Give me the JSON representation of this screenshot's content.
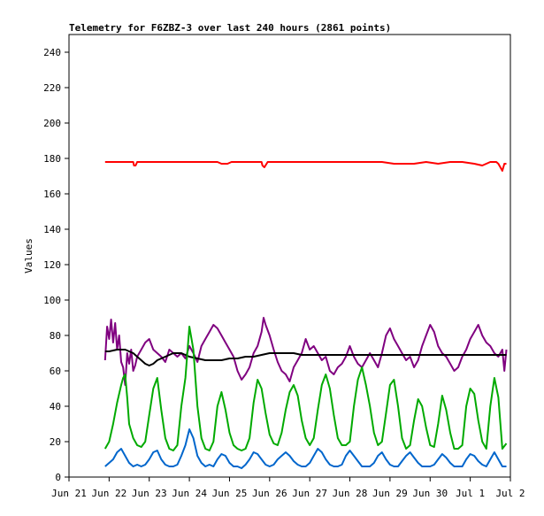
{
  "chart_data": {
    "type": "line",
    "title": "Telemetry for F6ZBZ-3 over last 240 hours (2861 points)",
    "xlabel": "",
    "ylabel": "Values",
    "ylim": [
      0,
      250
    ],
    "y_ticks": [
      0,
      20,
      40,
      60,
      80,
      100,
      120,
      140,
      160,
      180,
      200,
      220,
      240
    ],
    "xlim": [
      0,
      11
    ],
    "x_ticks": [
      0,
      1,
      2,
      3,
      4,
      5,
      6,
      7,
      8,
      9,
      10,
      11
    ],
    "x_tick_labels": [
      "Jun 21",
      "Jun 22",
      "Jun 23",
      "Jun 24",
      "Jun 25",
      "Jun 26",
      "Jun 27",
      "Jun 28",
      "Jun 29",
      "Jun 30",
      "Jul 1",
      "Jul 2"
    ],
    "x_unit": "days since Jun 21",
    "grid": false,
    "legend": false,
    "series": [
      {
        "color": "#ff0000",
        "x": [
          0.9,
          1.0,
          1.2,
          1.4,
          1.6,
          1.62,
          1.66,
          1.7,
          1.9,
          2.2,
          2.5,
          2.8,
          3.1,
          3.4,
          3.7,
          3.8,
          3.95,
          4.05,
          4.2,
          4.5,
          4.8,
          4.82,
          4.87,
          4.95,
          5.1,
          5.4,
          5.7,
          6.0,
          6.3,
          6.6,
          6.9,
          7.2,
          7.5,
          7.8,
          8.1,
          8.4,
          8.6,
          8.9,
          9.2,
          9.5,
          9.8,
          10.1,
          10.3,
          10.5,
          10.65,
          10.7,
          10.75,
          10.8,
          10.85,
          10.9
        ],
        "values": [
          178,
          178,
          178,
          178,
          178,
          176,
          176,
          178,
          178,
          178,
          178,
          178,
          178,
          178,
          178,
          177,
          177,
          178,
          178,
          178,
          178,
          176,
          175,
          178,
          178,
          178,
          178,
          178,
          178,
          178,
          178,
          178,
          178,
          178,
          177,
          177,
          177,
          178,
          177,
          178,
          178,
          177,
          176,
          178,
          178,
          177,
          175,
          173,
          177,
          177
        ]
      },
      {
        "color": "#800080",
        "x": [
          0.9,
          0.95,
          1.0,
          1.05,
          1.1,
          1.15,
          1.2,
          1.25,
          1.3,
          1.35,
          1.4,
          1.45,
          1.5,
          1.55,
          1.6,
          1.65,
          1.7,
          1.8,
          1.9,
          2.0,
          2.1,
          2.2,
          2.3,
          2.4,
          2.5,
          2.6,
          2.7,
          2.8,
          2.9,
          3.0,
          3.1,
          3.2,
          3.3,
          3.4,
          3.5,
          3.6,
          3.7,
          3.8,
          3.9,
          4.0,
          4.1,
          4.2,
          4.3,
          4.4,
          4.5,
          4.6,
          4.7,
          4.8,
          4.85,
          4.9,
          5.0,
          5.1,
          5.2,
          5.3,
          5.4,
          5.5,
          5.6,
          5.7,
          5.8,
          5.9,
          6.0,
          6.1,
          6.2,
          6.3,
          6.4,
          6.5,
          6.6,
          6.7,
          6.8,
          6.9,
          7.0,
          7.1,
          7.2,
          7.3,
          7.4,
          7.5,
          7.6,
          7.7,
          7.8,
          7.9,
          8.0,
          8.1,
          8.2,
          8.3,
          8.4,
          8.5,
          8.6,
          8.7,
          8.8,
          8.9,
          9.0,
          9.1,
          9.2,
          9.3,
          9.4,
          9.5,
          9.6,
          9.7,
          9.8,
          9.9,
          10.0,
          10.1,
          10.2,
          10.3,
          10.4,
          10.5,
          10.6,
          10.7,
          10.8,
          10.85,
          10.9
        ],
        "values": [
          66,
          85,
          78,
          89,
          76,
          87,
          72,
          80,
          65,
          62,
          52,
          70,
          64,
          72,
          60,
          63,
          68,
          72,
          76,
          78,
          72,
          70,
          68,
          65,
          72,
          70,
          68,
          70,
          67,
          74,
          70,
          65,
          74,
          78,
          82,
          86,
          84,
          80,
          76,
          72,
          68,
          60,
          55,
          58,
          62,
          70,
          74,
          82,
          90,
          86,
          80,
          72,
          65,
          60,
          58,
          54,
          62,
          66,
          70,
          78,
          72,
          74,
          70,
          66,
          68,
          60,
          58,
          62,
          64,
          68,
          74,
          68,
          64,
          62,
          66,
          70,
          66,
          62,
          70,
          80,
          84,
          78,
          74,
          70,
          66,
          68,
          62,
          66,
          74,
          80,
          86,
          82,
          74,
          70,
          68,
          64,
          60,
          62,
          68,
          72,
          78,
          82,
          86,
          80,
          76,
          74,
          70,
          68,
          72,
          60,
          72
        ]
      },
      {
        "color": "#000000",
        "x": [
          0.9,
          1.0,
          1.2,
          1.4,
          1.5,
          1.6,
          1.7,
          1.8,
          1.9,
          2.0,
          2.1,
          2.2,
          2.4,
          2.6,
          2.8,
          3.0,
          3.2,
          3.4,
          3.6,
          3.8,
          4.0,
          4.2,
          4.4,
          4.6,
          4.8,
          5.0,
          5.2,
          5.4,
          5.6,
          5.8,
          6.0,
          6.2,
          6.4,
          6.6,
          6.8,
          7.0,
          7.4,
          7.8,
          8.2,
          8.6,
          9.0,
          9.4,
          9.8,
          10.2,
          10.5,
          10.7,
          10.9
        ],
        "values": [
          71,
          71,
          72,
          72,
          71,
          70,
          68,
          66,
          64,
          63,
          64,
          66,
          68,
          70,
          70,
          68,
          67,
          66,
          66,
          66,
          67,
          67,
          68,
          68,
          69,
          70,
          70,
          70,
          70,
          69,
          69,
          69,
          69,
          69,
          69,
          69,
          69,
          69,
          69,
          69,
          69,
          69,
          69,
          69,
          69,
          69,
          69
        ]
      },
      {
        "color": "#00aa00",
        "x": [
          0.9,
          1.0,
          1.1,
          1.2,
          1.3,
          1.35,
          1.4,
          1.45,
          1.5,
          1.6,
          1.7,
          1.8,
          1.9,
          2.0,
          2.1,
          2.2,
          2.3,
          2.4,
          2.5,
          2.6,
          2.7,
          2.8,
          2.9,
          3.0,
          3.1,
          3.2,
          3.3,
          3.4,
          3.5,
          3.6,
          3.7,
          3.8,
          3.9,
          4.0,
          4.1,
          4.2,
          4.3,
          4.4,
          4.5,
          4.6,
          4.7,
          4.8,
          4.9,
          5.0,
          5.1,
          5.2,
          5.3,
          5.4,
          5.5,
          5.6,
          5.7,
          5.8,
          5.9,
          6.0,
          6.1,
          6.2,
          6.3,
          6.4,
          6.5,
          6.6,
          6.7,
          6.8,
          6.9,
          7.0,
          7.1,
          7.2,
          7.3,
          7.4,
          7.5,
          7.6,
          7.7,
          7.8,
          7.9,
          8.0,
          8.1,
          8.2,
          8.3,
          8.4,
          8.5,
          8.6,
          8.7,
          8.8,
          8.9,
          9.0,
          9.1,
          9.2,
          9.3,
          9.4,
          9.5,
          9.6,
          9.7,
          9.8,
          9.9,
          10.0,
          10.1,
          10.2,
          10.3,
          10.4,
          10.5,
          10.6,
          10.7,
          10.8,
          10.9
        ],
        "values": [
          16,
          20,
          30,
          42,
          52,
          56,
          58,
          45,
          30,
          22,
          18,
          17,
          20,
          35,
          50,
          56,
          38,
          22,
          16,
          15,
          18,
          40,
          56,
          85,
          72,
          40,
          22,
          16,
          15,
          20,
          40,
          48,
          38,
          25,
          18,
          16,
          15,
          16,
          22,
          42,
          55,
          50,
          36,
          24,
          19,
          18,
          25,
          38,
          48,
          52,
          46,
          32,
          22,
          18,
          22,
          38,
          52,
          58,
          50,
          35,
          22,
          18,
          18,
          20,
          40,
          55,
          62,
          52,
          40,
          25,
          18,
          20,
          36,
          52,
          55,
          40,
          22,
          16,
          18,
          32,
          44,
          40,
          28,
          18,
          17,
          30,
          46,
          38,
          25,
          16,
          16,
          18,
          40,
          50,
          47,
          32,
          20,
          16,
          40,
          56,
          45,
          16,
          19
        ]
      },
      {
        "color": "#0066cc",
        "x": [
          0.9,
          1.0,
          1.1,
          1.2,
          1.3,
          1.4,
          1.5,
          1.6,
          1.7,
          1.8,
          1.9,
          2.0,
          2.1,
          2.2,
          2.3,
          2.4,
          2.5,
          2.6,
          2.7,
          2.8,
          2.9,
          3.0,
          3.1,
          3.2,
          3.3,
          3.4,
          3.5,
          3.6,
          3.7,
          3.8,
          3.9,
          4.0,
          4.1,
          4.2,
          4.3,
          4.4,
          4.5,
          4.6,
          4.7,
          4.8,
          4.9,
          5.0,
          5.1,
          5.2,
          5.3,
          5.4,
          5.5,
          5.6,
          5.7,
          5.8,
          5.9,
          6.0,
          6.1,
          6.2,
          6.3,
          6.4,
          6.5,
          6.6,
          6.7,
          6.8,
          6.9,
          7.0,
          7.1,
          7.2,
          7.3,
          7.4,
          7.5,
          7.6,
          7.7,
          7.8,
          7.9,
          8.0,
          8.1,
          8.2,
          8.3,
          8.4,
          8.5,
          8.6,
          8.7,
          8.8,
          8.9,
          9.0,
          9.1,
          9.2,
          9.3,
          9.4,
          9.5,
          9.6,
          9.7,
          9.8,
          9.9,
          10.0,
          10.1,
          10.2,
          10.3,
          10.4,
          10.5,
          10.6,
          10.7,
          10.8,
          10.9
        ],
        "values": [
          6,
          8,
          10,
          14,
          16,
          12,
          8,
          6,
          7,
          6,
          7,
          10,
          14,
          15,
          10,
          7,
          6,
          6,
          7,
          12,
          18,
          27,
          22,
          12,
          8,
          6,
          7,
          6,
          10,
          13,
          12,
          8,
          6,
          6,
          5,
          7,
          10,
          14,
          13,
          10,
          7,
          6,
          7,
          10,
          12,
          14,
          12,
          9,
          7,
          6,
          6,
          8,
          12,
          16,
          14,
          10,
          7,
          6,
          6,
          7,
          12,
          15,
          12,
          9,
          6,
          6,
          6,
          8,
          12,
          14,
          10,
          7,
          6,
          6,
          9,
          12,
          14,
          11,
          8,
          6,
          6,
          6,
          7,
          10,
          13,
          11,
          8,
          6,
          6,
          6,
          10,
          13,
          12,
          9,
          7,
          6,
          10,
          14,
          10,
          6,
          6
        ]
      }
    ]
  }
}
